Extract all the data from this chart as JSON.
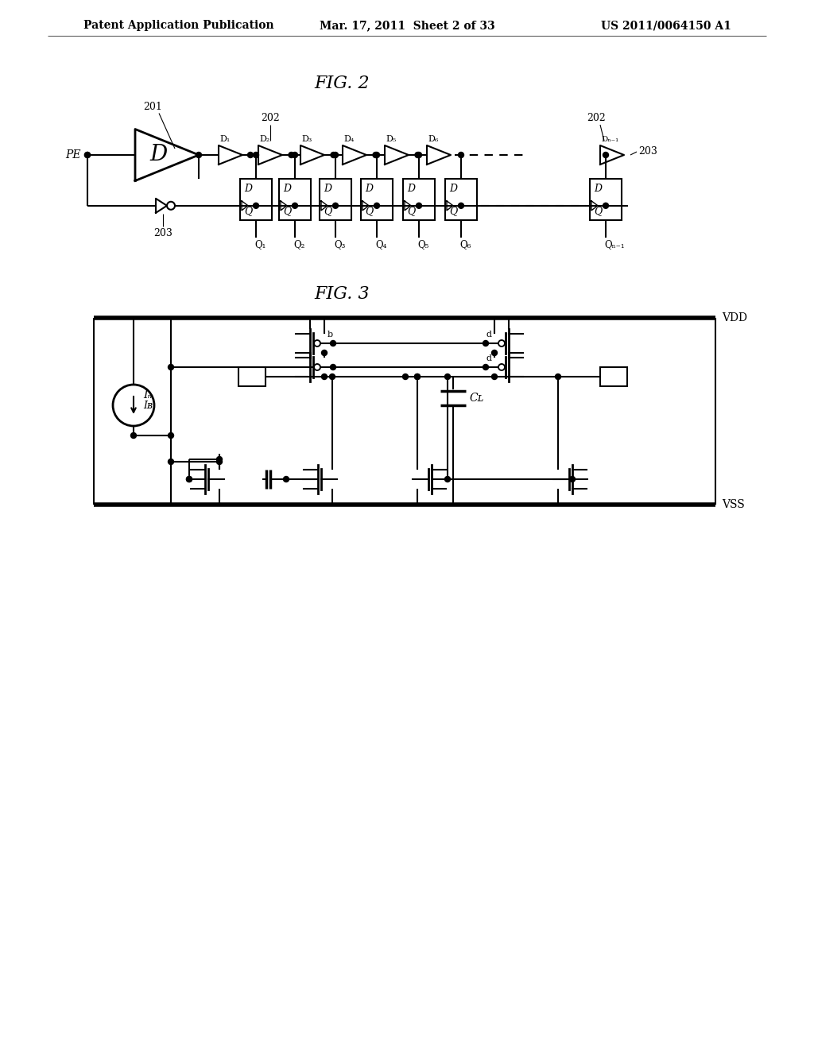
{
  "bg_color": "#ffffff",
  "line_color": "#000000",
  "header_left": "Patent Application Publication",
  "header_mid": "Mar. 17, 2011  Sheet 2 of 33",
  "header_right": "US 2011/0064150 A1",
  "fig2_title": "FIG. 2",
  "fig3_title": "FIG. 3",
  "header_fontsize": 11,
  "title_fontsize": 16
}
